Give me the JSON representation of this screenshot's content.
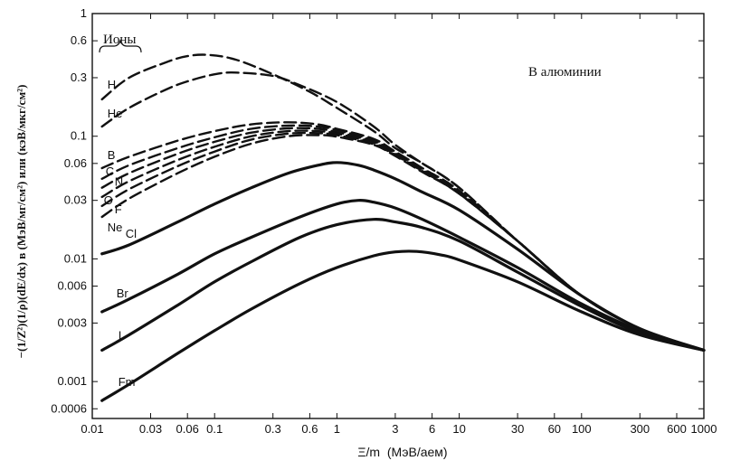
{
  "chart_data": {
    "type": "line",
    "title": "",
    "xlabel": "Ξ/m  (МэВ/аем)",
    "ylabel": "−(1/Z²)(1/ρ)(dE/dx) в (МэВ/мг/см²) или (кэВ/мкг/см²)",
    "x_scale": "log",
    "y_scale": "log",
    "xlim": [
      0.01,
      1000
    ],
    "ylim": [
      0.0005,
      1
    ],
    "grid": false,
    "x_ticks": [
      "0.01",
      "0.03",
      "0.06",
      "0.1",
      "0.3",
      "0.6",
      "1",
      "3",
      "6",
      "10",
      "30",
      "60",
      "100",
      "300",
      "600",
      "1000"
    ],
    "y_ticks": [
      "1",
      "0.6",
      "0.3",
      "0.1",
      "0.06",
      "0.03",
      "0.01",
      "0.006",
      "0.003",
      "0.001",
      "0.0006"
    ],
    "annotations": {
      "ions_label": "Ионы",
      "medium_label": "В алюминии"
    },
    "series": [
      {
        "name": "H",
        "style": "dashed",
        "x": [
          0.012,
          0.02,
          0.04,
          0.06,
          0.09,
          0.15,
          0.3,
          0.6,
          1,
          2,
          3,
          5,
          10,
          30,
          100,
          300,
          1000
        ],
        "y": [
          0.2,
          0.3,
          0.4,
          0.45,
          0.46,
          0.42,
          0.32,
          0.23,
          0.17,
          0.11,
          0.08,
          0.06,
          0.038,
          0.014,
          0.005,
          0.0027,
          0.0018
        ]
      },
      {
        "name": "He",
        "style": "dashed",
        "x": [
          0.012,
          0.02,
          0.04,
          0.06,
          0.1,
          0.15,
          0.3,
          0.5,
          1,
          2,
          3,
          5,
          10,
          30,
          100,
          300,
          1000
        ],
        "y": [
          0.12,
          0.17,
          0.24,
          0.28,
          0.32,
          0.33,
          0.31,
          0.26,
          0.19,
          0.12,
          0.085,
          0.06,
          0.038,
          0.014,
          0.005,
          0.0027,
          0.0018
        ]
      },
      {
        "name": "B",
        "style": "dashed",
        "x": [
          0.012,
          0.02,
          0.05,
          0.1,
          0.2,
          0.4,
          0.7,
          1,
          2,
          3,
          5,
          10,
          30,
          100,
          300,
          1000
        ],
        "y": [
          0.055,
          0.068,
          0.092,
          0.11,
          0.125,
          0.13,
          0.125,
          0.115,
          0.095,
          0.075,
          0.055,
          0.036,
          0.014,
          0.005,
          0.0027,
          0.0018
        ]
      },
      {
        "name": "C",
        "style": "dashed",
        "x": [
          0.012,
          0.02,
          0.05,
          0.1,
          0.2,
          0.4,
          0.7,
          1,
          2,
          3,
          5,
          10,
          30,
          100,
          300,
          1000
        ],
        "y": [
          0.045,
          0.058,
          0.08,
          0.098,
          0.115,
          0.122,
          0.12,
          0.112,
          0.092,
          0.073,
          0.054,
          0.035,
          0.014,
          0.005,
          0.0027,
          0.0018
        ]
      },
      {
        "name": "N",
        "style": "dashed",
        "x": [
          0.012,
          0.02,
          0.05,
          0.1,
          0.2,
          0.4,
          0.7,
          1,
          2,
          3,
          5,
          10,
          30,
          100,
          300,
          1000
        ],
        "y": [
          0.038,
          0.05,
          0.072,
          0.09,
          0.107,
          0.116,
          0.115,
          0.108,
          0.09,
          0.072,
          0.053,
          0.035,
          0.014,
          0.005,
          0.0027,
          0.0018
        ]
      },
      {
        "name": "O",
        "style": "dashed",
        "x": [
          0.012,
          0.02,
          0.05,
          0.1,
          0.2,
          0.4,
          0.7,
          1,
          2,
          3,
          5,
          10,
          30,
          100,
          300,
          1000
        ],
        "y": [
          0.032,
          0.043,
          0.064,
          0.082,
          0.1,
          0.11,
          0.11,
          0.105,
          0.088,
          0.071,
          0.052,
          0.034,
          0.014,
          0.005,
          0.0027,
          0.0018
        ]
      },
      {
        "name": "F",
        "style": "dashed",
        "x": [
          0.012,
          0.02,
          0.05,
          0.1,
          0.2,
          0.4,
          0.7,
          1,
          2,
          3,
          5,
          10,
          30,
          100,
          300,
          1000
        ],
        "y": [
          0.027,
          0.037,
          0.057,
          0.075,
          0.094,
          0.105,
          0.106,
          0.102,
          0.086,
          0.07,
          0.052,
          0.034,
          0.014,
          0.005,
          0.0027,
          0.0018
        ]
      },
      {
        "name": "Ne",
        "style": "dashed",
        "x": [
          0.012,
          0.02,
          0.05,
          0.1,
          0.2,
          0.4,
          0.7,
          1,
          2,
          3,
          5,
          10,
          30,
          100,
          300,
          1000
        ],
        "y": [
          0.022,
          0.031,
          0.05,
          0.068,
          0.087,
          0.1,
          0.102,
          0.099,
          0.085,
          0.069,
          0.051,
          0.034,
          0.014,
          0.005,
          0.0027,
          0.0018
        ]
      },
      {
        "name": "Cl",
        "style": "solid",
        "x": [
          0.012,
          0.02,
          0.05,
          0.1,
          0.2,
          0.4,
          0.7,
          1,
          1.5,
          2,
          3,
          5,
          10,
          30,
          100,
          300,
          1000
        ],
        "y": [
          0.011,
          0.013,
          0.02,
          0.028,
          0.038,
          0.05,
          0.058,
          0.061,
          0.058,
          0.053,
          0.045,
          0.035,
          0.025,
          0.012,
          0.005,
          0.0027,
          0.0018
        ]
      },
      {
        "name": "Br",
        "style": "solid",
        "x": [
          0.012,
          0.02,
          0.05,
          0.1,
          0.2,
          0.5,
          1,
          1.5,
          2,
          3,
          5,
          10,
          30,
          100,
          300,
          1000
        ],
        "y": [
          0.0037,
          0.0047,
          0.0075,
          0.011,
          0.015,
          0.022,
          0.028,
          0.03,
          0.029,
          0.026,
          0.021,
          0.015,
          0.0085,
          0.0043,
          0.0026,
          0.0018
        ]
      },
      {
        "name": "I",
        "style": "solid",
        "x": [
          0.012,
          0.02,
          0.05,
          0.1,
          0.2,
          0.5,
          1,
          2,
          3,
          5,
          10,
          30,
          100,
          300,
          1000
        ],
        "y": [
          0.0018,
          0.0024,
          0.0042,
          0.0065,
          0.0095,
          0.015,
          0.019,
          0.021,
          0.02,
          0.018,
          0.014,
          0.0078,
          0.0041,
          0.0025,
          0.0018
        ]
      },
      {
        "name": "Fm",
        "style": "solid",
        "x": [
          0.012,
          0.02,
          0.05,
          0.1,
          0.2,
          0.5,
          1,
          2,
          3,
          4.5,
          7,
          10,
          30,
          100,
          300,
          1000
        ],
        "y": [
          0.0007,
          0.00095,
          0.0017,
          0.0026,
          0.0039,
          0.0063,
          0.0085,
          0.0106,
          0.0114,
          0.0115,
          0.0108,
          0.0098,
          0.0065,
          0.0037,
          0.0024,
          0.0018
        ]
      }
    ]
  }
}
